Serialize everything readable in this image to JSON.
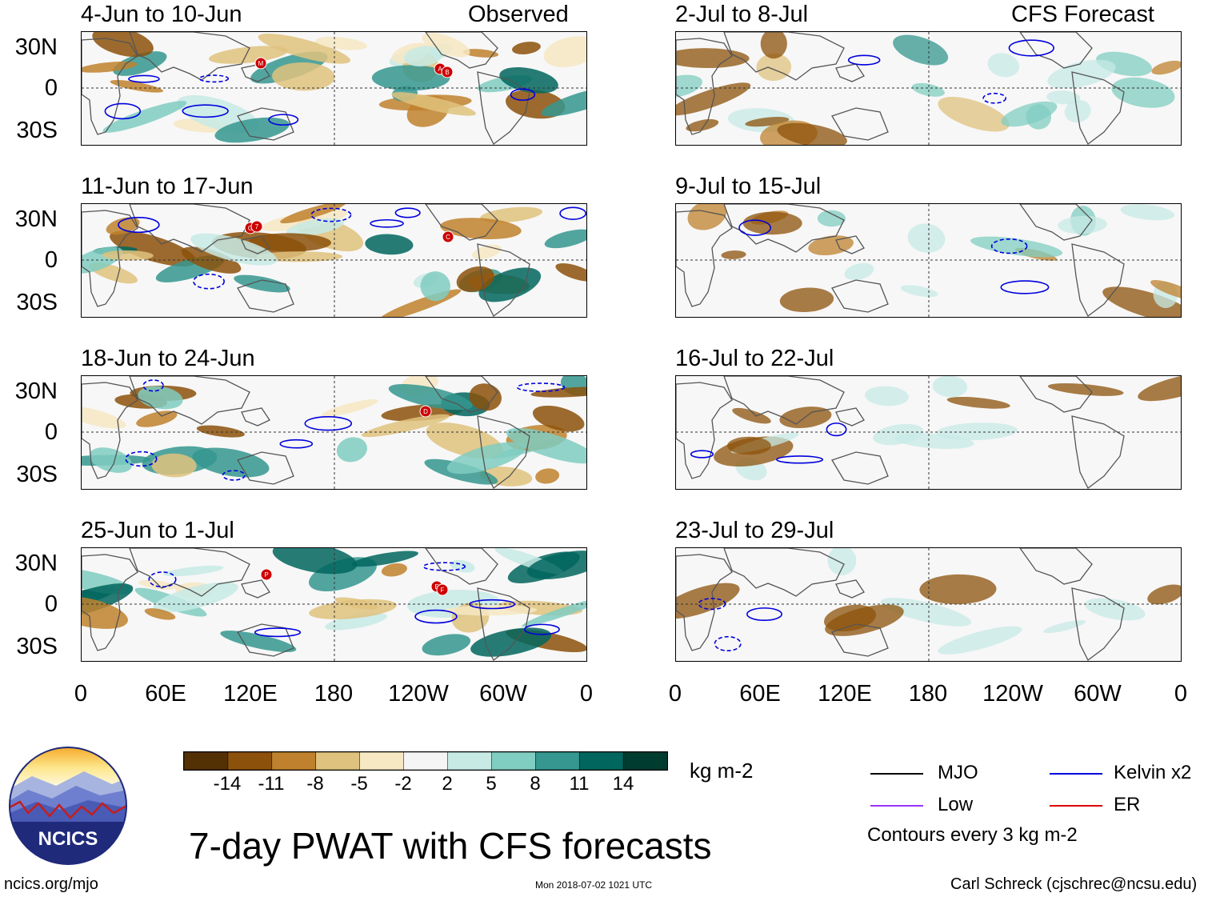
{
  "panels": [
    {
      "title": "4-Jun to 10-Jun",
      "subtitle": "Observed"
    },
    {
      "title": "11-Jun to 17-Jun",
      "subtitle": ""
    },
    {
      "title": "18-Jun to 24-Jun",
      "subtitle": ""
    },
    {
      "title": "25-Jun to 1-Jul",
      "subtitle": ""
    },
    {
      "title": "2-Jul to 8-Jul",
      "subtitle": "CFS Forecast"
    },
    {
      "title": "9-Jul to 15-Jul",
      "subtitle": ""
    },
    {
      "title": "16-Jul to 22-Jul",
      "subtitle": ""
    },
    {
      "title": "23-Jul to 29-Jul",
      "subtitle": ""
    }
  ],
  "lat_labels": [
    "30N",
    "0",
    "30S"
  ],
  "lon_labels": [
    "0",
    "60E",
    "120E",
    "180",
    "120W",
    "60W",
    "0"
  ],
  "colorbar": {
    "ticks": [
      "-14",
      "-11",
      "-8",
      "-5",
      "-2",
      "2",
      "5",
      "8",
      "11",
      "14"
    ],
    "colors": [
      "#543005",
      "#8c510a",
      "#bf812d",
      "#dfc27d",
      "#f6e8c3",
      "#f5f5f5",
      "#c7eae5",
      "#80cdc1",
      "#35978f",
      "#01665e",
      "#003c30"
    ],
    "units": "kg m-2"
  },
  "legend": {
    "items": [
      {
        "label": "MJO",
        "color": "#000000"
      },
      {
        "label": "Kelvin x2",
        "color": "#0000dd"
      },
      {
        "label": "Low",
        "color": "#9933ff"
      },
      {
        "label": "ER",
        "color": "#dd0000"
      }
    ],
    "note": "Contours every 3 kg m-2"
  },
  "title": "7-day PWAT with CFS forecasts",
  "logo_text": "NCICS",
  "footer": {
    "url": "ncics.org/mjo",
    "timestamp": "Mon 2018-07-02 1021 UTC",
    "credit": "Carl Schreck (cjschrec@ncsu.edu)"
  },
  "storms": [
    {
      "panel": 0,
      "labels": [
        "M",
        "A",
        "B"
      ]
    },
    {
      "panel": 1,
      "labels": [
        "G",
        "7",
        "C"
      ]
    },
    {
      "panel": 2,
      "labels": [
        "D"
      ]
    },
    {
      "panel": 3,
      "labels": [
        "P",
        "E",
        "F"
      ]
    }
  ]
}
